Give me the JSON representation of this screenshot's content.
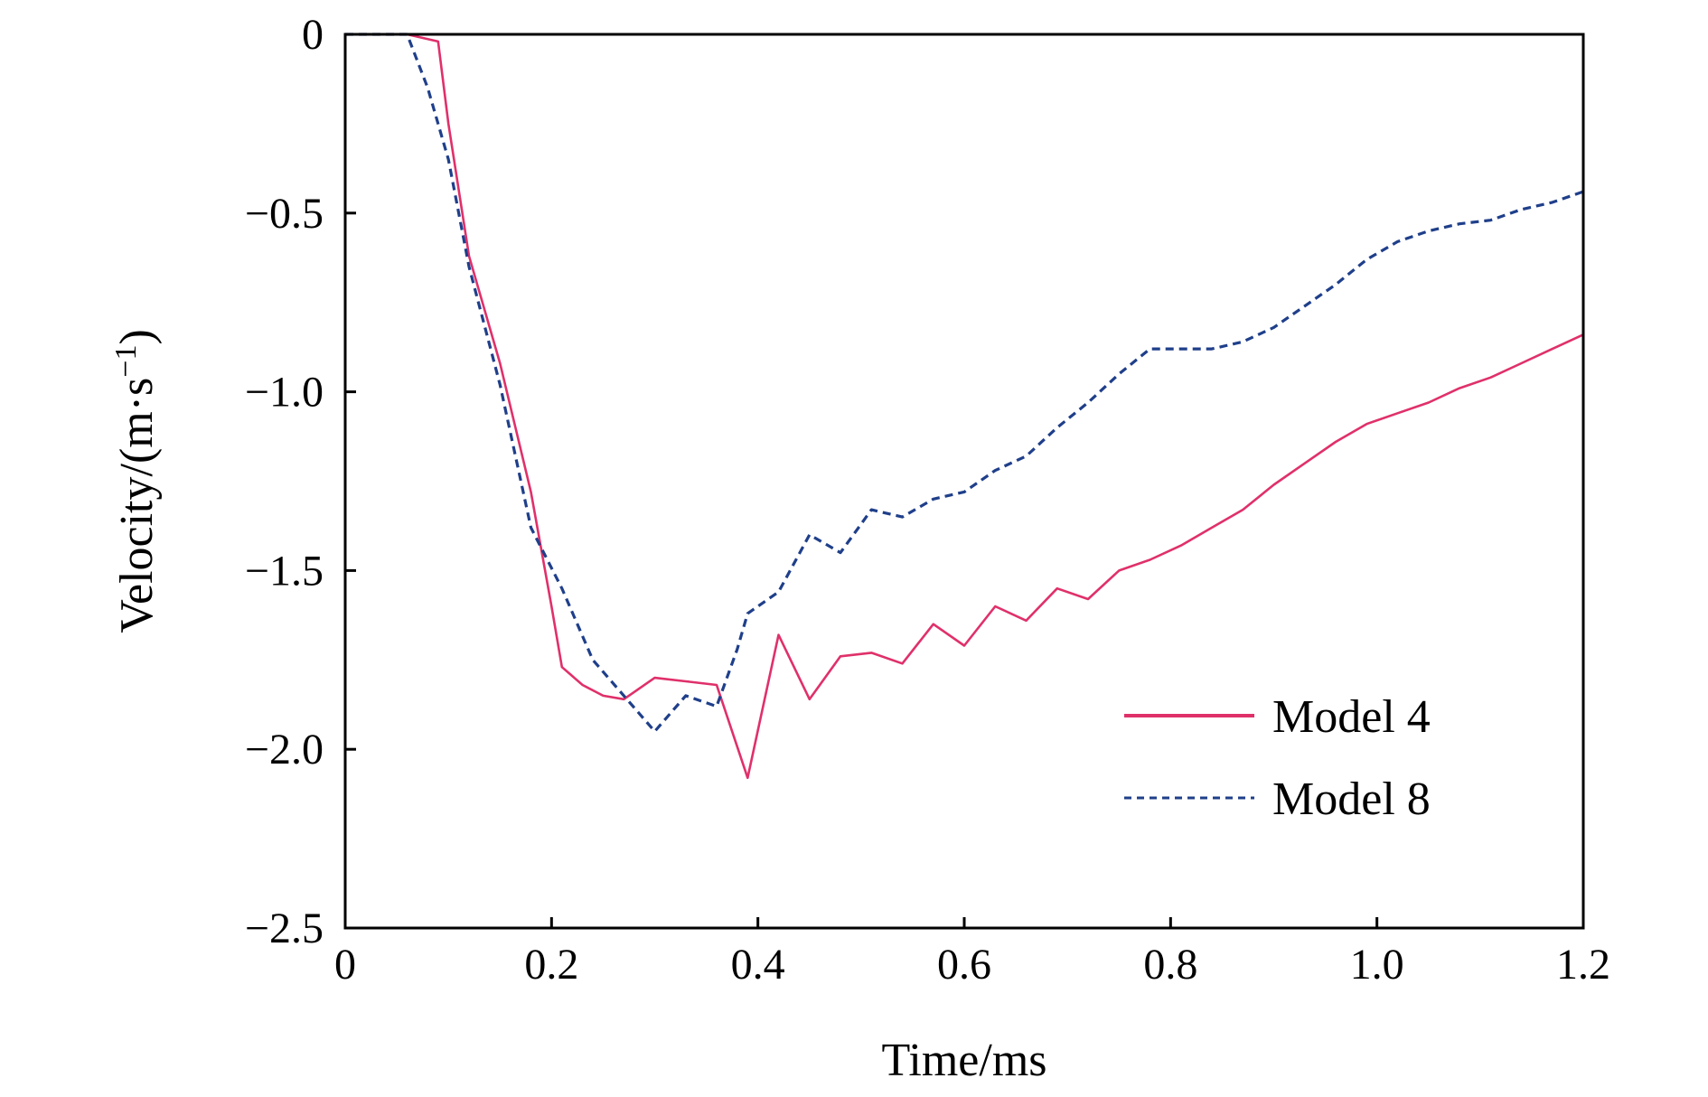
{
  "chart_data": {
    "type": "line",
    "title": "",
    "xlabel": "Time/ms",
    "ylabel_base": "Velocity/(m·s",
    "ylabel_sup": "−1",
    "ylabel_close": ")",
    "xlim": [
      0,
      1.2
    ],
    "ylim": [
      -2.5,
      0
    ],
    "xticks": [
      0,
      0.2,
      0.4,
      0.6,
      0.8,
      1.0,
      1.2
    ],
    "xtick_labels": [
      "0",
      "0.2",
      "0.4",
      "0.6",
      "0.8",
      "1.0",
      "1.2"
    ],
    "yticks": [
      0,
      -0.5,
      -1.0,
      -1.5,
      -2.0,
      -2.5
    ],
    "ytick_labels": [
      "0",
      "−0.5",
      "−1.0",
      "−1.5",
      "−2.0",
      "−2.5"
    ],
    "grid": false,
    "legend_position": "bottom-right",
    "series": [
      {
        "name": "Model 4",
        "color": "#e0306a",
        "style": "solid",
        "x": [
          0,
          0.06,
          0.09,
          0.1,
          0.12,
          0.15,
          0.18,
          0.2,
          0.21,
          0.23,
          0.25,
          0.27,
          0.3,
          0.33,
          0.36,
          0.39,
          0.42,
          0.45,
          0.48,
          0.51,
          0.54,
          0.57,
          0.6,
          0.63,
          0.66,
          0.69,
          0.72,
          0.75,
          0.78,
          0.81,
          0.84,
          0.87,
          0.9,
          0.93,
          0.96,
          0.99,
          1.02,
          1.05,
          1.08,
          1.11,
          1.14,
          1.17,
          1.2
        ],
        "y": [
          0,
          0,
          -0.02,
          -0.25,
          -0.62,
          -0.92,
          -1.28,
          -1.6,
          -1.77,
          -1.82,
          -1.85,
          -1.86,
          -1.8,
          -1.81,
          -1.82,
          -2.08,
          -1.68,
          -1.86,
          -1.74,
          -1.73,
          -1.76,
          -1.65,
          -1.71,
          -1.6,
          -1.64,
          -1.55,
          -1.58,
          -1.5,
          -1.47,
          -1.43,
          -1.38,
          -1.33,
          -1.26,
          -1.2,
          -1.14,
          -1.09,
          -1.06,
          -1.03,
          -0.99,
          -0.96,
          -0.92,
          -0.88,
          -0.84
        ]
      },
      {
        "name": "Model 8",
        "color": "#1f3f8a",
        "style": "dashed",
        "x": [
          0,
          0.03,
          0.06,
          0.08,
          0.1,
          0.12,
          0.15,
          0.18,
          0.21,
          0.24,
          0.27,
          0.3,
          0.33,
          0.36,
          0.38,
          0.39,
          0.42,
          0.45,
          0.48,
          0.51,
          0.54,
          0.57,
          0.6,
          0.63,
          0.66,
          0.69,
          0.72,
          0.75,
          0.78,
          0.81,
          0.84,
          0.87,
          0.9,
          0.93,
          0.96,
          0.99,
          1.02,
          1.05,
          1.08,
          1.11,
          1.14,
          1.17,
          1.2
        ],
        "y": [
          0,
          0,
          0,
          -0.15,
          -0.35,
          -0.65,
          -0.98,
          -1.38,
          -1.55,
          -1.75,
          -1.85,
          -1.95,
          -1.85,
          -1.88,
          -1.72,
          -1.62,
          -1.56,
          -1.4,
          -1.45,
          -1.33,
          -1.35,
          -1.3,
          -1.28,
          -1.22,
          -1.18,
          -1.1,
          -1.03,
          -0.95,
          -0.88,
          -0.88,
          -0.88,
          -0.86,
          -0.82,
          -0.76,
          -0.7,
          -0.63,
          -0.58,
          -0.55,
          -0.53,
          -0.52,
          -0.49,
          -0.47,
          -0.44
        ]
      }
    ]
  }
}
